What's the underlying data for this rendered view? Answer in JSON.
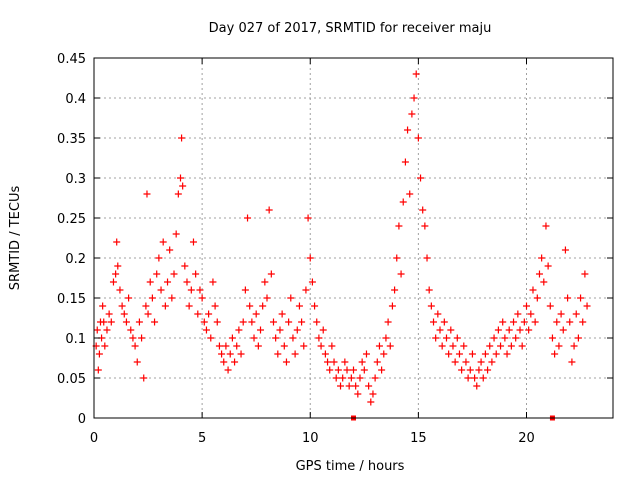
{
  "chart_data": {
    "type": "scatter",
    "title": "Day 027 of 2017, SRMTID for receiver maju",
    "xlabel": "GPS time / hours",
    "ylabel": "SRMTID / TECUs",
    "xlim": [
      0,
      24
    ],
    "ylim": [
      0,
      0.45
    ],
    "xticks": [
      0,
      5,
      10,
      15,
      20
    ],
    "xtick_labels": [
      "0",
      "5",
      "10",
      "15",
      "20"
    ],
    "yticks": [
      0,
      0.05,
      0.1,
      0.15,
      0.2,
      0.25,
      0.3,
      0.35,
      0.4,
      0.45
    ],
    "ytick_labels": [
      "0",
      "0.05",
      "0.1",
      "0.15",
      "0.2",
      "0.25",
      "0.3",
      "0.35",
      "0.4",
      "0.45"
    ],
    "grid": true,
    "marker": "+",
    "color": "#ff0000",
    "series": [
      {
        "name": "SRMTID",
        "points": [
          [
            0.1,
            0.09
          ],
          [
            0.15,
            0.11
          ],
          [
            0.2,
            0.06
          ],
          [
            0.25,
            0.08
          ],
          [
            0.3,
            0.12
          ],
          [
            0.35,
            0.1
          ],
          [
            0.4,
            0.14
          ],
          [
            0.45,
            0.12
          ],
          [
            0.5,
            0.09
          ],
          [
            0.6,
            0.11
          ],
          [
            0.7,
            0.13
          ],
          [
            0.8,
            0.12
          ],
          [
            0.9,
            0.17
          ],
          [
            1.0,
            0.18
          ],
          [
            1.05,
            0.22
          ],
          [
            1.1,
            0.19
          ],
          [
            1.2,
            0.16
          ],
          [
            1.3,
            0.14
          ],
          [
            1.4,
            0.13
          ],
          [
            1.5,
            0.12
          ],
          [
            1.6,
            0.15
          ],
          [
            1.7,
            0.11
          ],
          [
            1.8,
            0.1
          ],
          [
            1.9,
            0.09
          ],
          [
            2.0,
            0.07
          ],
          [
            2.1,
            0.12
          ],
          [
            2.2,
            0.1
          ],
          [
            2.3,
            0.05
          ],
          [
            2.4,
            0.14
          ],
          [
            2.45,
            0.28
          ],
          [
            2.5,
            0.13
          ],
          [
            2.6,
            0.17
          ],
          [
            2.7,
            0.15
          ],
          [
            2.8,
            0.12
          ],
          [
            2.9,
            0.18
          ],
          [
            3.0,
            0.2
          ],
          [
            3.1,
            0.16
          ],
          [
            3.2,
            0.22
          ],
          [
            3.3,
            0.14
          ],
          [
            3.4,
            0.17
          ],
          [
            3.5,
            0.21
          ],
          [
            3.6,
            0.15
          ],
          [
            3.7,
            0.18
          ],
          [
            3.8,
            0.23
          ],
          [
            3.9,
            0.28
          ],
          [
            4.0,
            0.3
          ],
          [
            4.05,
            0.35
          ],
          [
            4.1,
            0.29
          ],
          [
            4.2,
            0.19
          ],
          [
            4.3,
            0.17
          ],
          [
            4.4,
            0.14
          ],
          [
            4.5,
            0.16
          ],
          [
            4.6,
            0.22
          ],
          [
            4.7,
            0.18
          ],
          [
            4.8,
            0.13
          ],
          [
            4.9,
            0.16
          ],
          [
            5.0,
            0.15
          ],
          [
            5.1,
            0.12
          ],
          [
            5.2,
            0.11
          ],
          [
            5.3,
            0.13
          ],
          [
            5.4,
            0.1
          ],
          [
            5.5,
            0.17
          ],
          [
            5.6,
            0.14
          ],
          [
            5.7,
            0.12
          ],
          [
            5.8,
            0.09
          ],
          [
            5.9,
            0.08
          ],
          [
            6.0,
            0.07
          ],
          [
            6.1,
            0.09
          ],
          [
            6.2,
            0.06
          ],
          [
            6.3,
            0.08
          ],
          [
            6.4,
            0.1
          ],
          [
            6.5,
            0.07
          ],
          [
            6.6,
            0.09
          ],
          [
            6.7,
            0.11
          ],
          [
            6.8,
            0.08
          ],
          [
            6.9,
            0.12
          ],
          [
            7.0,
            0.16
          ],
          [
            7.1,
            0.25
          ],
          [
            7.2,
            0.14
          ],
          [
            7.3,
            0.12
          ],
          [
            7.4,
            0.1
          ],
          [
            7.5,
            0.13
          ],
          [
            7.6,
            0.09
          ],
          [
            7.7,
            0.11
          ],
          [
            7.8,
            0.14
          ],
          [
            7.9,
            0.17
          ],
          [
            8.0,
            0.15
          ],
          [
            8.1,
            0.26
          ],
          [
            8.2,
            0.18
          ],
          [
            8.3,
            0.12
          ],
          [
            8.4,
            0.1
          ],
          [
            8.5,
            0.08
          ],
          [
            8.6,
            0.11
          ],
          [
            8.7,
            0.13
          ],
          [
            8.8,
            0.09
          ],
          [
            8.9,
            0.07
          ],
          [
            9.0,
            0.12
          ],
          [
            9.1,
            0.15
          ],
          [
            9.2,
            0.1
          ],
          [
            9.3,
            0.08
          ],
          [
            9.4,
            0.11
          ],
          [
            9.5,
            0.14
          ],
          [
            9.6,
            0.12
          ],
          [
            9.7,
            0.09
          ],
          [
            9.8,
            0.16
          ],
          [
            9.9,
            0.25
          ],
          [
            10.0,
            0.2
          ],
          [
            10.1,
            0.17
          ],
          [
            10.2,
            0.14
          ],
          [
            10.3,
            0.12
          ],
          [
            10.4,
            0.1
          ],
          [
            10.5,
            0.09
          ],
          [
            10.6,
            0.11
          ],
          [
            10.7,
            0.08
          ],
          [
            10.8,
            0.07
          ],
          [
            10.9,
            0.06
          ],
          [
            11.0,
            0.09
          ],
          [
            11.1,
            0.07
          ],
          [
            11.2,
            0.05
          ],
          [
            11.3,
            0.06
          ],
          [
            11.4,
            0.04
          ],
          [
            11.5,
            0.05
          ],
          [
            11.6,
            0.07
          ],
          [
            11.7,
            0.06
          ],
          [
            11.8,
            0.04
          ],
          [
            11.9,
            0.05
          ],
          [
            12.0,
            0.06
          ],
          [
            12.1,
            0.04
          ],
          [
            12.2,
            0.03
          ],
          [
            12.3,
            0.05
          ],
          [
            12.4,
            0.07
          ],
          [
            12.5,
            0.06
          ],
          [
            12.6,
            0.08
          ],
          [
            12.7,
            0.04
          ],
          [
            12.8,
            0.02
          ],
          [
            12.9,
            0.03
          ],
          [
            13.0,
            0.05
          ],
          [
            13.1,
            0.07
          ],
          [
            13.2,
            0.09
          ],
          [
            13.3,
            0.06
          ],
          [
            13.4,
            0.08
          ],
          [
            13.5,
            0.1
          ],
          [
            13.6,
            0.12
          ],
          [
            13.7,
            0.09
          ],
          [
            13.8,
            0.14
          ],
          [
            13.9,
            0.16
          ],
          [
            14.0,
            0.2
          ],
          [
            14.1,
            0.24
          ],
          [
            14.2,
            0.18
          ],
          [
            14.3,
            0.27
          ],
          [
            14.4,
            0.32
          ],
          [
            14.5,
            0.36
          ],
          [
            14.6,
            0.28
          ],
          [
            14.7,
            0.38
          ],
          [
            14.8,
            0.4
          ],
          [
            14.9,
            0.43
          ],
          [
            15.0,
            0.35
          ],
          [
            15.1,
            0.3
          ],
          [
            15.2,
            0.26
          ],
          [
            15.3,
            0.24
          ],
          [
            15.4,
            0.2
          ],
          [
            15.5,
            0.16
          ],
          [
            15.6,
            0.14
          ],
          [
            15.7,
            0.12
          ],
          [
            15.8,
            0.1
          ],
          [
            15.9,
            0.13
          ],
          [
            16.0,
            0.11
          ],
          [
            16.1,
            0.09
          ],
          [
            16.2,
            0.12
          ],
          [
            16.3,
            0.1
          ],
          [
            16.4,
            0.08
          ],
          [
            16.5,
            0.11
          ],
          [
            16.6,
            0.09
          ],
          [
            16.7,
            0.07
          ],
          [
            16.8,
            0.1
          ],
          [
            16.9,
            0.08
          ],
          [
            17.0,
            0.06
          ],
          [
            17.1,
            0.09
          ],
          [
            17.2,
            0.07
          ],
          [
            17.3,
            0.05
          ],
          [
            17.4,
            0.06
          ],
          [
            17.5,
            0.08
          ],
          [
            17.6,
            0.05
          ],
          [
            17.7,
            0.04
          ],
          [
            17.8,
            0.06
          ],
          [
            17.9,
            0.07
          ],
          [
            18.0,
            0.05
          ],
          [
            18.1,
            0.08
          ],
          [
            18.2,
            0.06
          ],
          [
            18.3,
            0.09
          ],
          [
            18.4,
            0.07
          ],
          [
            18.5,
            0.1
          ],
          [
            18.6,
            0.08
          ],
          [
            18.7,
            0.11
          ],
          [
            18.8,
            0.09
          ],
          [
            18.9,
            0.12
          ],
          [
            19.0,
            0.1
          ],
          [
            19.1,
            0.08
          ],
          [
            19.2,
            0.11
          ],
          [
            19.3,
            0.09
          ],
          [
            19.4,
            0.12
          ],
          [
            19.5,
            0.1
          ],
          [
            19.6,
            0.13
          ],
          [
            19.7,
            0.11
          ],
          [
            19.8,
            0.09
          ],
          [
            19.9,
            0.12
          ],
          [
            20.0,
            0.14
          ],
          [
            20.1,
            0.11
          ],
          [
            20.2,
            0.13
          ],
          [
            20.3,
            0.16
          ],
          [
            20.4,
            0.12
          ],
          [
            20.5,
            0.15
          ],
          [
            20.6,
            0.18
          ],
          [
            20.7,
            0.2
          ],
          [
            20.8,
            0.17
          ],
          [
            20.9,
            0.24
          ],
          [
            21.0,
            0.19
          ],
          [
            21.1,
            0.14
          ],
          [
            21.2,
            0.1
          ],
          [
            21.3,
            0.08
          ],
          [
            21.4,
            0.12
          ],
          [
            21.5,
            0.09
          ],
          [
            21.6,
            0.13
          ],
          [
            21.7,
            0.11
          ],
          [
            21.8,
            0.21
          ],
          [
            21.9,
            0.15
          ],
          [
            22.0,
            0.12
          ],
          [
            22.1,
            0.07
          ],
          [
            22.2,
            0.09
          ],
          [
            22.3,
            0.13
          ],
          [
            22.4,
            0.1
          ],
          [
            22.5,
            0.15
          ],
          [
            22.6,
            0.12
          ],
          [
            22.7,
            0.18
          ],
          [
            22.8,
            0.14
          ]
        ]
      }
    ],
    "markers_on_xaxis": [
      12.0,
      21.2
    ]
  }
}
